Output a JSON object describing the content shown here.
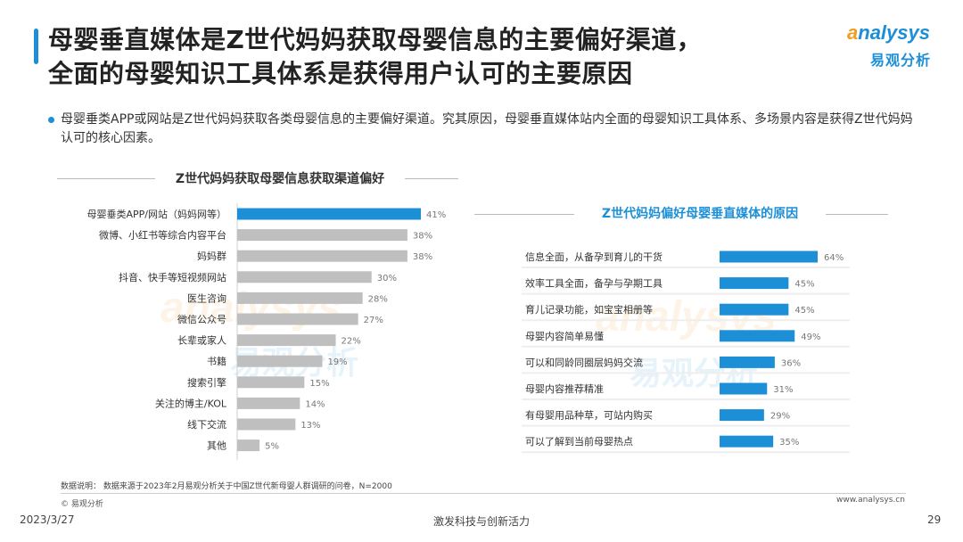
{
  "header": {
    "title_line1": "母婴垂直媒体是Z世代妈妈获取母婴信息的主要偏好渠道，",
    "title_line2": "全面的母婴知识工具体系是获得用户认可的主要原因"
  },
  "logo": {
    "en_o": "a",
    "en_rest": "nalysys",
    "cn": "易观分析"
  },
  "bullet": "母婴垂类APP或网站是Z世代妈妈获取各类母婴信息的主要偏好渠道。究其原因，母婴垂直媒体站内全面的母婴知识工具体系、多场景内容是获得Z世代妈妈认可的核心因素。",
  "chart_data": [
    {
      "type": "bar",
      "orientation": "horizontal",
      "title": "Z世代妈妈获取母婴信息获取渠道偏好",
      "categories": [
        "母婴垂类APP/网站（妈妈网等）",
        "微博、小红书等综合内容平台",
        "妈妈群",
        "抖音、快手等短视频网站",
        "医生咨询",
        "微信公众号",
        "长辈或家人",
        "书籍",
        "搜索引擎",
        "关注的博主/KOL",
        "线下交流",
        "其他"
      ],
      "values": [
        41,
        38,
        38,
        30,
        28,
        27,
        22,
        19,
        15,
        14,
        13,
        5
      ],
      "value_labels": [
        "41%",
        "38%",
        "38%",
        "30%",
        "28%",
        "27%",
        "22%",
        "19%",
        "15%",
        "14%",
        "13%",
        "5%"
      ],
      "unit": "%",
      "highlight_index": 0,
      "colors": {
        "highlight": "#1c8fd6",
        "default": "#bfbfbf"
      }
    },
    {
      "type": "bar",
      "orientation": "horizontal",
      "title": "Z世代妈妈偏好母婴垂直媒体的原因",
      "categories": [
        "信息全面，从备孕到育儿的干货",
        "效率工具全面，备孕与孕期工具",
        "育儿记录功能，如宝宝相册等",
        "母婴内容简单易懂",
        "可以和同龄同圈层妈妈交流",
        "母婴内容推荐精准",
        "有母婴用品种草，可站内购买",
        "可以了解到当前母婴热点"
      ],
      "values": [
        64,
        45,
        45,
        49,
        36,
        31,
        29,
        35
      ],
      "value_labels": [
        "64%",
        "45%",
        "45%",
        "49%",
        "36%",
        "31%",
        "29%",
        "35%"
      ],
      "unit": "%",
      "colors": {
        "bar": "#1c8fd6"
      }
    }
  ],
  "footer": {
    "note": "数据说明：  数据来源于2023年2月易观分析关于中国Z世代新母婴人群调研的问卷，N=2000",
    "copyright": "© 易观分析",
    "site": "www.analysys.cn",
    "date": "2023/3/27",
    "slogan": "激发科技与创新活力",
    "page": "29"
  }
}
